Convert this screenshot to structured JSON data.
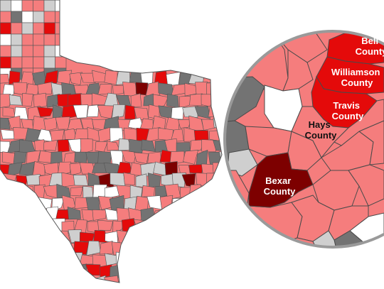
{
  "colors": {
    "light_pink": "#f57d7d",
    "red": "#e40a0a",
    "dark_red": "#7d0000",
    "dark_gray": "#737373",
    "light_gray": "#cfcfcf",
    "white": "#ffffff",
    "border": "#4a4a4a",
    "label_on_dark": "#ffffff",
    "label_on_light": "#111111"
  },
  "inset": {
    "labels": [
      {
        "id": "bell",
        "lines": [
          "Bell",
          "County"
        ],
        "category": "red"
      },
      {
        "id": "williamson",
        "lines": [
          "Williamson",
          "County"
        ],
        "category": "red"
      },
      {
        "id": "travis",
        "lines": [
          "Travis",
          "County"
        ],
        "category": "red"
      },
      {
        "id": "hays",
        "lines": [
          "Hays",
          "County"
        ],
        "category": "light_pink"
      },
      {
        "id": "bexar",
        "lines": [
          "Bexar",
          "County"
        ],
        "category": "dark_red"
      }
    ]
  }
}
